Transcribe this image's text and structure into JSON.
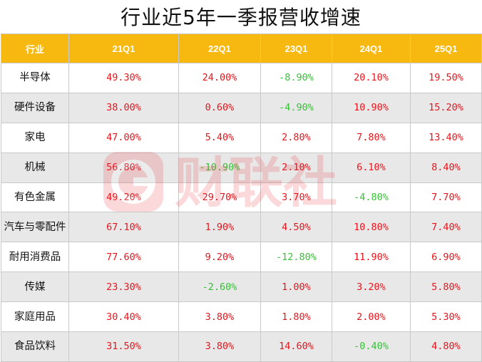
{
  "title": "行业近5年一季报营收增速",
  "colors": {
    "header_bg": "#f7b90f",
    "header_text": "#ffffff",
    "positive": "#e8141c",
    "negative": "#36c236",
    "row_alt": "#e8e8e8"
  },
  "table": {
    "headers": [
      "行业",
      "21Q1",
      "22Q1",
      "23Q1",
      "24Q1",
      "25Q1"
    ],
    "rows": [
      {
        "label": "半导体",
        "values": [
          "49.30%",
          "24.00%",
          "-8.90%",
          "20.10%",
          "19.50%"
        ]
      },
      {
        "label": "硬件设备",
        "values": [
          "38.00%",
          "0.60%",
          "-4.90%",
          "10.90%",
          "15.20%"
        ]
      },
      {
        "label": "家电",
        "values": [
          "47.00%",
          "5.40%",
          "2.80%",
          "7.80%",
          "13.40%"
        ]
      },
      {
        "label": "机械",
        "values": [
          "56.80%",
          "-10.90%",
          "2.10%",
          "6.10%",
          "8.40%"
        ]
      },
      {
        "label": "有色金属",
        "values": [
          "49.20%",
          "29.70%",
          "3.70%",
          "-4.80%",
          "7.70%"
        ]
      },
      {
        "label": "汽车与零配件",
        "values": [
          "67.10%",
          "1.90%",
          "4.50%",
          "10.80%",
          "7.40%"
        ]
      },
      {
        "label": "耐用消费品",
        "values": [
          "77.60%",
          "9.20%",
          "-12.80%",
          "11.90%",
          "6.90%"
        ]
      },
      {
        "label": "传媒",
        "values": [
          "23.30%",
          "-2.60%",
          "1.00%",
          "3.20%",
          "5.80%"
        ]
      },
      {
        "label": "家庭用品",
        "values": [
          "30.40%",
          "3.80%",
          "1.80%",
          "2.00%",
          "5.30%"
        ]
      },
      {
        "label": "食品饮料",
        "values": [
          "31.50%",
          "3.80%",
          "14.60%",
          "-0.40%",
          "4.80%"
        ]
      }
    ]
  },
  "watermark": {
    "text": "财联社",
    "icon": "camera-logo-icon"
  }
}
